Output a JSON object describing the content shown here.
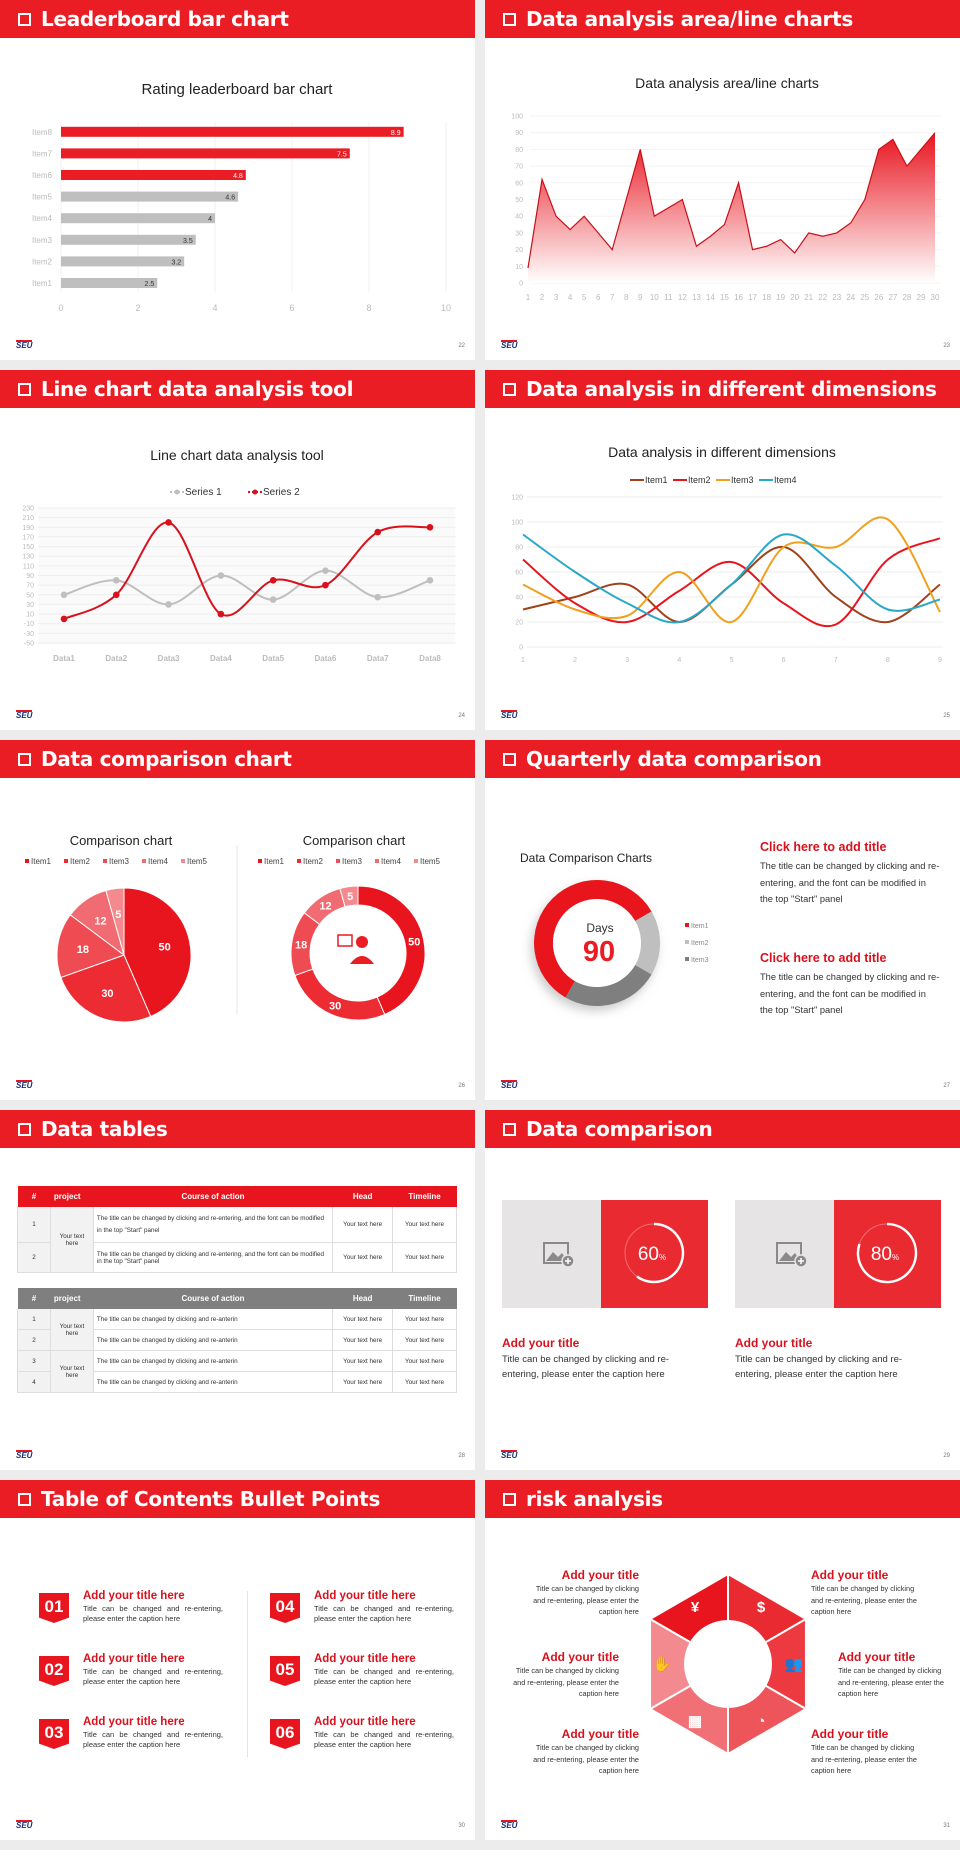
{
  "logo_text": "SEU",
  "colors": {
    "brand_red": "#ea1c24",
    "accent_gray": "#bfbfbf",
    "dark_gray": "#7f7f7f",
    "item1": "#a0421b",
    "item2": "#e8141e",
    "item3": "#f0a01c",
    "item4": "#27a8c8"
  },
  "slides": [
    {
      "title": "Leaderboard bar chart",
      "page": "22"
    },
    {
      "title": "Data analysis area/line charts",
      "page": "23"
    },
    {
      "title": "Line chart data analysis tool",
      "page": "24"
    },
    {
      "title": "Data analysis in different dimensions",
      "page": "25"
    },
    {
      "title": "Data comparison chart",
      "page": "26"
    },
    {
      "title": "Quarterly data comparison",
      "page": "27"
    },
    {
      "title": "Data tables",
      "page": "28"
    },
    {
      "title": "Data comparison",
      "page": "29"
    },
    {
      "title": "Table of Contents Bullet Points",
      "page": "30"
    },
    {
      "title": "risk analysis",
      "page": "31"
    }
  ],
  "chart_data": [
    {
      "type": "bar",
      "orientation": "horizontal",
      "title": "Rating leaderboard bar chart",
      "categories": [
        "Item1",
        "Item2",
        "Item3",
        "Item4",
        "Item5",
        "Item6",
        "Item7",
        "Item8"
      ],
      "values": [
        2.5,
        3.2,
        3.5,
        4,
        4.6,
        4.8,
        7.5,
        8.9
      ],
      "xlim": [
        0,
        10
      ],
      "xticks": [
        "0",
        "2",
        "4",
        "6",
        "8",
        "10"
      ],
      "highlight_top": 3,
      "grid": true
    },
    {
      "type": "area",
      "title": "Data analysis area/line charts",
      "x": [
        "1",
        "2",
        "3",
        "4",
        "5",
        "6",
        "7",
        "8",
        "9",
        "10",
        "11",
        "12",
        "13",
        "14",
        "15",
        "16",
        "17",
        "18",
        "19",
        "20",
        "21",
        "22",
        "23",
        "24",
        "25",
        "26",
        "27",
        "28",
        "29",
        "30"
      ],
      "values": [
        9,
        62,
        40,
        32,
        40,
        30,
        20,
        50,
        80,
        40,
        45,
        50,
        22,
        28,
        35,
        60,
        20,
        22,
        26,
        18,
        30,
        28,
        30,
        36,
        50,
        80,
        86,
        70,
        80,
        90
      ],
      "ylim": [
        0,
        100
      ],
      "yticks": [
        "0",
        "10",
        "20",
        "30",
        "40",
        "50",
        "60",
        "70",
        "80",
        "90",
        "100"
      ],
      "grid": true
    },
    {
      "type": "line",
      "title": "Line chart data analysis tool",
      "categories": [
        "Data1",
        "Data2",
        "Data3",
        "Data4",
        "Data5",
        "Data6",
        "Data7",
        "Data8"
      ],
      "series": [
        {
          "name": "Series 1",
          "values": [
            50,
            80,
            30,
            90,
            40,
            100,
            45,
            80
          ],
          "color": "#bfbfbf"
        },
        {
          "name": "Series 2",
          "values": [
            0,
            50,
            200,
            10,
            80,
            70,
            180,
            190
          ],
          "color": "#d8111d"
        }
      ],
      "ylim": [
        -50,
        230
      ],
      "yticks": [
        "-50",
        "-30",
        "-10",
        "10",
        "30",
        "50",
        "70",
        "90",
        "110",
        "130",
        "150",
        "170",
        "190",
        "210",
        "230"
      ],
      "smooth": true,
      "legend": "top"
    },
    {
      "type": "line",
      "title": "Data analysis in different dimensions",
      "categories": [
        "1",
        "2",
        "3",
        "4",
        "5",
        "6",
        "7",
        "8",
        "9"
      ],
      "series": [
        {
          "name": "Item1",
          "values": [
            30,
            40,
            50,
            20,
            50,
            80,
            40,
            20,
            50
          ],
          "color": "#a0421b"
        },
        {
          "name": "Item2",
          "values": [
            70,
            35,
            20,
            45,
            68,
            35,
            18,
            70,
            87
          ],
          "color": "#e8141e"
        },
        {
          "name": "Item3",
          "values": [
            50,
            30,
            25,
            60,
            20,
            80,
            80,
            102,
            28
          ],
          "color": "#f0a01c"
        },
        {
          "name": "Item4",
          "values": [
            90,
            60,
            35,
            20,
            50,
            90,
            65,
            30,
            38
          ],
          "color": "#27a8c8"
        }
      ],
      "ylim": [
        0,
        120
      ],
      "yticks": [
        "0",
        "20",
        "40",
        "60",
        "80",
        "100",
        "120"
      ],
      "smooth": true,
      "legend": "top"
    },
    {
      "type": "pie",
      "title": "Comparison chart",
      "categories": [
        "Item1",
        "Item2",
        "Item3",
        "Item4",
        "Item5"
      ],
      "values": [
        50,
        30,
        18,
        12,
        5
      ],
      "colors": [
        "#e8141e",
        "#ec2b33",
        "#ef4b52",
        "#f16c72",
        "#f48a8e"
      ],
      "legend": "top"
    },
    {
      "type": "pie",
      "variant": "donut",
      "title": "Comparison chart",
      "categories": [
        "Item1",
        "Item2",
        "Item3",
        "Item4",
        "Item5"
      ],
      "values": [
        50,
        30,
        18,
        12,
        5
      ],
      "colors": [
        "#e8141e",
        "#ec2b33",
        "#ef4b52",
        "#f16c72",
        "#f48a8e"
      ],
      "legend": "top",
      "center_icon": "customer-service-icon"
    },
    {
      "type": "pie",
      "variant": "donut",
      "title": "Data Comparison Charts",
      "categories": [
        "Item1",
        "Item2",
        "Item3"
      ],
      "values": [
        7,
        2,
        3
      ],
      "colors": [
        "#e8141e",
        "#bfbfbf",
        "#7f7f7f"
      ],
      "center_label": "Days",
      "center_value": "90",
      "legend": "right"
    }
  ],
  "quarterly": {
    "blocks": [
      {
        "title": "Click here to add title",
        "text": "The title can be changed by clicking and re-entering, and the font can be modified in the top \"Start\" panel"
      },
      {
        "title": "Click here to add title",
        "text": "The title can be changed by clicking and re-entering, and the font can be modified in the top \"Start\" panel"
      }
    ]
  },
  "tables": {
    "headers": [
      "#",
      "project",
      "Course of action",
      "Head",
      "Timeline"
    ],
    "table1": {
      "rows": [
        {
          "num": "1",
          "course": "The title can be changed by clicking and re-entering, and the font can be modified in the top \"Start\" panel",
          "head": "Your text here",
          "timeline": "Your text here"
        },
        {
          "num": "2",
          "course": "The title can be changed by clicking and re-entering, and the font can be modified in the top \"Start\" panel",
          "head": "Your text here",
          "timeline": "Your text here"
        }
      ],
      "project": "Your text here"
    },
    "table2": {
      "rows": [
        {
          "num": "1",
          "course": "The title can be changed by clicking and re-anterin",
          "head": "Your text here",
          "timeline": "Your text here"
        },
        {
          "num": "2",
          "course": "The title can be changed by clicking and re-anterin",
          "head": "Your text here",
          "timeline": "Your text here"
        },
        {
          "num": "3",
          "course": "The title can be changed by clicking and re-anterin",
          "head": "Your text here",
          "timeline": "Your text here"
        },
        {
          "num": "4",
          "course": "The title can be changed by clicking and re-anterin",
          "head": "Your text here",
          "timeline": "Your text here"
        }
      ],
      "projects": [
        "Your text here",
        "Your text here"
      ]
    }
  },
  "comparison": {
    "items": [
      {
        "percent": 60,
        "value": "60",
        "unit": "%",
        "title": "Add your title",
        "text": "Title can be changed by clicking and re-entering, please enter the caption here"
      },
      {
        "percent": 80,
        "value": "80",
        "unit": "%",
        "title": "Add your title",
        "text": "Title can be changed by clicking and re-entering, please enter the caption here"
      }
    ]
  },
  "toc": {
    "items": [
      {
        "num": "01",
        "title": "Add your title here",
        "text": "Title can be changed and re-entering, please enter the caption here"
      },
      {
        "num": "02",
        "title": "Add your title here",
        "text": "Title can be changed and re-entering, please enter the caption here"
      },
      {
        "num": "03",
        "title": "Add your title here",
        "text": "Title can be changed and re-entering, please enter the caption here"
      },
      {
        "num": "04",
        "title": "Add your title here",
        "text": "Title can be changed and re-entering, please enter the caption here"
      },
      {
        "num": "05",
        "title": "Add your title here",
        "text": "Title can be changed and re-entering, please enter the caption here"
      },
      {
        "num": "06",
        "title": "Add your title here",
        "text": "Title can be changed and re-entering, please enter the caption here"
      }
    ]
  },
  "risk": {
    "items": [
      {
        "title": "Add your title",
        "text": "Title can be changed by clicking and re-entering, please enter the caption here",
        "icon": "money-bag-yen-icon"
      },
      {
        "title": "Add your title",
        "text": "Title can be changed by clicking and re-entering, please enter the caption here",
        "icon": "coins-dollar-icon"
      },
      {
        "title": "Add your title",
        "text": "Title can be changed by clicking and re-entering, please enter the caption here",
        "icon": "hand-yen-icon"
      },
      {
        "title": "Add your title",
        "text": "Title can be changed by clicking and re-entering, please enter the caption here",
        "icon": "people-icon"
      },
      {
        "title": "Add your title",
        "text": "Title can be changed by clicking and re-entering, please enter the caption here",
        "icon": "building-icon"
      },
      {
        "title": "Add your title",
        "text": "Title can be changed by clicking and re-entering, please enter the caption here",
        "icon": "pie-chart-icon"
      }
    ]
  }
}
